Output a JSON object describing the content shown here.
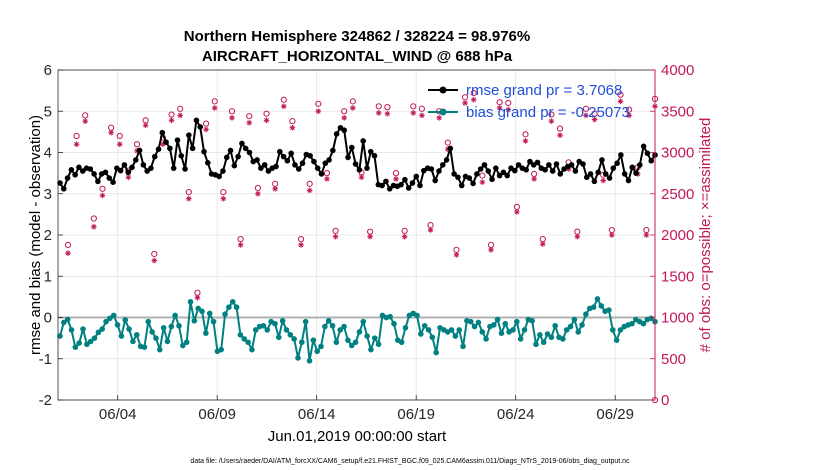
{
  "chart_data": {
    "type": "line",
    "title_line1": "Northern Hemisphere 324862 / 328224 = 98.976%",
    "title_line2": "AIRCRAFT_HORIZONTAL_WIND @ 688 hPa",
    "xlabel": "Jun.01,2019 00:00:00 start",
    "ylabel_left": "rmse and bias (model - observation)",
    "ylabel_right": "# of obs: o=possible; ×=assimilated",
    "x_ticks": [
      "06/04",
      "06/09",
      "06/14",
      "06/19",
      "06/24",
      "06/29"
    ],
    "x_tick_days": [
      4,
      9,
      14,
      19,
      24,
      29
    ],
    "xlim": [
      1,
      31
    ],
    "ylim_left": [
      -2,
      6
    ],
    "y_ticks_left": [
      "-2",
      "-1",
      "0",
      "1",
      "2",
      "3",
      "4",
      "5",
      "6"
    ],
    "ylim_right": [
      0,
      4000
    ],
    "y_ticks_right": [
      "0",
      "500",
      "1000",
      "1500",
      "2000",
      "2500",
      "3000",
      "3500",
      "4000"
    ],
    "legend": {
      "rmse": "rmse grand pr = 3.7068",
      "bias": "bias grand pr = -0.25073"
    },
    "colors": {
      "rmse": "#000000",
      "bias": "#008080",
      "obs": "#c2185b",
      "zero_line": "#b0b0b0",
      "grid": "#e3e3e3"
    },
    "rmse": [
      3.26,
      3.12,
      3.38,
      3.58,
      3.46,
      3.64,
      3.55,
      3.62,
      3.6,
      3.48,
      3.3,
      3.48,
      3.52,
      3.38,
      3.28,
      3.62,
      3.56,
      3.7,
      3.52,
      3.64,
      3.82,
      4.05,
      3.7,
      3.55,
      3.62,
      3.9,
      4.08,
      4.48,
      4.25,
      4.1,
      3.62,
      4.3,
      3.92,
      3.6,
      4.42,
      4.1,
      4.78,
      4.62,
      4.02,
      3.75,
      3.48,
      3.46,
      3.42,
      3.55,
      3.88,
      4.05,
      3.68,
      3.9,
      4.22,
      4.1,
      4.0,
      3.78,
      3.82,
      3.62,
      3.7,
      3.55,
      3.62,
      3.66,
      4.02,
      3.9,
      3.8,
      3.98,
      3.7,
      3.6,
      3.74,
      3.95,
      3.92,
      3.78,
      3.62,
      3.48,
      3.74,
      3.82,
      4.05,
      4.45,
      4.6,
      4.54,
      3.88,
      4.12,
      3.72,
      3.58,
      4.28,
      3.62,
      4.02,
      3.92,
      3.22,
      3.2,
      3.3,
      3.12,
      3.2,
      3.18,
      3.22,
      3.34,
      3.14,
      3.26,
      3.42,
      3.2,
      3.56,
      3.62,
      3.6,
      3.32,
      3.55,
      3.7,
      3.82,
      4.1,
      3.48,
      3.4,
      3.2,
      3.42,
      3.38,
      3.25,
      3.48,
      3.6,
      3.7,
      3.55,
      3.35,
      3.62,
      3.44,
      3.52,
      3.44,
      3.62,
      3.56,
      3.7,
      3.62,
      3.58,
      3.78,
      3.7,
      3.76,
      3.62,
      3.58,
      3.7,
      3.55,
      3.72,
      3.48,
      3.6,
      3.66,
      3.7,
      3.55,
      3.78,
      3.72,
      3.4,
      3.48,
      3.3,
      3.52,
      3.82,
      3.48,
      3.38,
      3.62,
      3.74,
      3.94,
      3.48,
      3.32,
      3.64,
      3.5,
      3.7,
      4.15,
      3.98,
      3.8,
      3.94
    ],
    "bias": [
      -0.45,
      -0.12,
      -0.05,
      -0.3,
      -0.72,
      -0.62,
      -0.28,
      -0.65,
      -0.58,
      -0.5,
      -0.36,
      -0.28,
      -0.1,
      -0.02,
      0.05,
      -0.18,
      -0.45,
      -0.06,
      -0.28,
      -0.58,
      -0.42,
      -0.7,
      -0.72,
      -0.1,
      -0.35,
      -0.5,
      -0.78,
      -0.25,
      -0.58,
      -0.22,
      0.05,
      -0.2,
      -0.68,
      -0.6,
      0.38,
      -0.08,
      0.22,
      0.15,
      -0.38,
      0.1,
      -0.1,
      -0.82,
      -0.78,
      0.08,
      0.25,
      0.38,
      0.25,
      -0.42,
      -0.52,
      -0.6,
      -0.78,
      -0.3,
      -0.22,
      -0.2,
      -0.3,
      -0.1,
      -0.15,
      -0.48,
      -0.08,
      -0.3,
      -0.42,
      -0.52,
      -0.98,
      -0.6,
      -0.1,
      -1.05,
      -0.55,
      -0.82,
      -0.7,
      -0.22,
      -0.08,
      -0.2,
      -0.6,
      -0.3,
      -0.22,
      -0.55,
      -0.68,
      -0.6,
      -0.35,
      -0.1,
      -0.45,
      -0.78,
      -0.5,
      -0.65,
      0.05,
      0.0,
      0.02,
      -0.15,
      -0.55,
      -0.6,
      -0.25,
      0.05,
      0.1,
      0.05,
      -0.4,
      -0.2,
      -0.3,
      -0.48,
      -0.85,
      -0.25,
      -0.3,
      -0.35,
      -0.3,
      -0.45,
      -0.3,
      -0.7,
      -0.08,
      -0.1,
      -0.22,
      -0.12,
      -0.35,
      -0.52,
      -0.22,
      -0.18,
      -0.05,
      -0.38,
      -0.15,
      -0.35,
      -0.3,
      -0.1,
      -0.52,
      -0.3,
      -0.05,
      -0.08,
      -0.65,
      -0.42,
      -0.6,
      -0.4,
      -0.48,
      -0.2,
      -0.48,
      -0.52,
      -0.3,
      -0.22,
      -0.05,
      -0.35,
      -0.18,
      0.08,
      0.22,
      0.25,
      0.45,
      0.28,
      0.15,
      0.18,
      -0.3,
      -0.55,
      -0.3,
      -0.22,
      -0.18,
      -0.15,
      -0.05,
      -0.1,
      -0.15,
      -0.05,
      -0.02,
      -0.1
    ],
    "obs_possible": [
      1880,
      3200,
      3450,
      2200,
      2560,
      3300,
      3200,
      2780,
      3100,
      3390,
      1770,
      3180,
      3460,
      3530,
      2520,
      1300,
      3350,
      3620,
      2520,
      3500,
      1950,
      3440,
      2570,
      3470,
      2620,
      3640,
      3380,
      1950,
      2620,
      3590,
      2750,
      2050,
      3500,
      3620,
      2760,
      2040,
      3560,
      3550,
      2750,
      2050,
      3560,
      3530,
      2120,
      3500,
      3120,
      1820,
      3670,
      3720,
      2720,
      1880,
      3610,
      3600,
      2340,
      3220,
      2740,
      1950,
      3460,
      3290,
      2880,
      2040,
      3530,
      3470,
      2730,
      2060,
      3700,
      3520,
      2820,
      2060,
      3650
    ],
    "obs_assimilated": [
      1780,
      3100,
      3380,
      2100,
      2480,
      3240,
      3100,
      2700,
      3020,
      3330,
      1690,
      3100,
      3390,
      3450,
      2440,
      1240,
      3280,
      3540,
      2440,
      3420,
      1880,
      3360,
      2500,
      3390,
      2560,
      3560,
      3300,
      1880,
      2540,
      3500,
      2680,
      1980,
      3420,
      3540,
      2700,
      1980,
      3480,
      3470,
      2680,
      1980,
      3480,
      3450,
      2060,
      3420,
      3040,
      1760,
      3600,
      3640,
      2640,
      1820,
      3540,
      3520,
      2280,
      3140,
      2680,
      1890,
      3380,
      3210,
      2800,
      1980,
      3450,
      3400,
      2660,
      2000,
      3620,
      3450,
      2740,
      2000,
      3560
    ],
    "source_note": "data file: /Users/raeder/DAI/ATM_forcXX/CAM6_setup/f.e21.FHIST_BGC.f09_025.CAM6assim.011/Diags_NTrS_2019-06/obs_diag_output.nc"
  }
}
